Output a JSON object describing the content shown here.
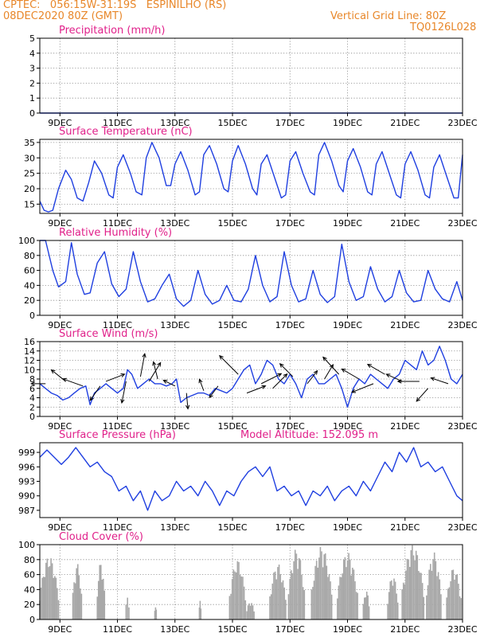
{
  "header": {
    "line1": "CPTEC:   056:15W-31:19S   ESPINILHO (RS)",
    "line2": "08DEC2020 80Z (GMT)",
    "grid_info": "Vertical Grid Line: 80Z",
    "code": "TQ0126L028"
  },
  "model_altitude": "Model Altitude: 152.095 m",
  "colors": {
    "header": "#e8872a",
    "title": "#e0208a",
    "line": "#1f3fe0",
    "bar": "#a8a8a8",
    "arrow": "#000000"
  },
  "x_axis": {
    "ticks": [
      "9DEC",
      "11DEC",
      "13DEC",
      "15DEC",
      "17DEC",
      "19DEC",
      "21DEC",
      "23DEC"
    ],
    "tick_days": [
      1,
      3,
      5,
      7,
      9,
      11,
      13,
      15
    ],
    "range_days": [
      0.3,
      15
    ]
  },
  "chart_data": [
    {
      "type": "line",
      "title": "Precipitation (mm/h)",
      "ylim": [
        0,
        5
      ],
      "yticks": [
        "0",
        "1",
        "2",
        "3",
        "4",
        "5"
      ],
      "grid": true,
      "series": [
        {
          "x": [
            0.3,
            15
          ],
          "y": [
            0,
            0
          ]
        }
      ]
    },
    {
      "type": "line",
      "title": "Surface Temperature (nC)",
      "ylim": [
        12,
        36
      ],
      "yticks": [
        "15",
        "20",
        "25",
        "30",
        "35"
      ],
      "grid": true,
      "series": [
        {
          "x": [
            0.3,
            0.45,
            0.6,
            0.75,
            0.95,
            1.2,
            1.4,
            1.6,
            1.8,
            2.0,
            2.2,
            2.45,
            2.7,
            2.85,
            3.0,
            3.2,
            3.45,
            3.65,
            3.85,
            4.0,
            4.2,
            4.45,
            4.7,
            4.85,
            5.0,
            5.2,
            5.45,
            5.7,
            5.85,
            6.0,
            6.2,
            6.45,
            6.7,
            6.85,
            7.0,
            7.2,
            7.45,
            7.7,
            7.85,
            8.0,
            8.2,
            8.45,
            8.7,
            8.85,
            9.0,
            9.2,
            9.45,
            9.7,
            9.85,
            10.0,
            10.2,
            10.45,
            10.7,
            10.85,
            11.0,
            11.2,
            11.45,
            11.7,
            11.85,
            12.0,
            12.2,
            12.45,
            12.7,
            12.85,
            13.0,
            13.2,
            13.45,
            13.7,
            13.85,
            14.0,
            14.2,
            14.45,
            14.7,
            14.85,
            15.0
          ],
          "y": [
            16,
            13,
            12.5,
            13,
            20,
            26,
            23,
            17,
            16,
            22,
            29,
            25,
            18,
            17,
            27,
            31,
            25,
            19,
            18,
            30,
            35,
            30,
            21,
            21,
            28,
            32,
            26,
            18,
            19,
            31,
            34,
            28,
            20,
            19,
            29,
            34,
            28,
            20,
            18,
            28,
            31,
            24,
            17,
            18,
            29,
            32,
            25,
            19,
            18,
            31,
            35,
            29,
            21,
            19,
            29,
            33,
            27,
            19,
            18,
            28,
            32,
            25,
            18,
            17,
            28,
            32,
            26,
            18,
            17,
            27,
            31,
            24,
            17,
            17,
            31
          ]
        }
      ]
    },
    {
      "type": "line",
      "title": "Relative Humidity (%)",
      "ylim": [
        0,
        100
      ],
      "yticks": [
        "0",
        "20",
        "40",
        "60",
        "80",
        "100"
      ],
      "grid": true,
      "series": [
        {
          "x": [
            0.3,
            0.5,
            0.75,
            0.95,
            1.2,
            1.4,
            1.6,
            1.85,
            2.05,
            2.3,
            2.55,
            2.8,
            3.05,
            3.3,
            3.55,
            3.8,
            4.05,
            4.3,
            4.55,
            4.8,
            5.05,
            5.3,
            5.55,
            5.8,
            6.05,
            6.3,
            6.55,
            6.8,
            7.05,
            7.3,
            7.55,
            7.8,
            8.05,
            8.3,
            8.55,
            8.8,
            9.05,
            9.3,
            9.55,
            9.8,
            10.05,
            10.3,
            10.55,
            10.8,
            11.05,
            11.3,
            11.55,
            11.8,
            12.05,
            12.3,
            12.55,
            12.8,
            13.05,
            13.3,
            13.55,
            13.8,
            14.05,
            14.3,
            14.55,
            14.8,
            15.0
          ],
          "y": [
            100,
            100,
            60,
            38,
            45,
            97,
            55,
            28,
            30,
            70,
            85,
            42,
            25,
            35,
            85,
            45,
            18,
            22,
            40,
            55,
            22,
            12,
            20,
            60,
            28,
            15,
            20,
            40,
            20,
            18,
            35,
            80,
            40,
            18,
            25,
            85,
            40,
            18,
            22,
            60,
            28,
            17,
            25,
            95,
            45,
            20,
            25,
            65,
            35,
            18,
            25,
            60,
            30,
            18,
            20,
            60,
            35,
            22,
            18,
            45,
            20
          ]
        }
      ]
    },
    {
      "type": "line",
      "title": "Surface Wind (m/s)",
      "ylim": [
        0,
        16
      ],
      "yticks": [
        "0",
        "2",
        "4",
        "6",
        "8",
        "10",
        "12",
        "14",
        "16"
      ],
      "grid": true,
      "series": [
        {
          "x": [
            0.3,
            0.5,
            0.7,
            0.9,
            1.1,
            1.3,
            1.5,
            1.7,
            1.9,
            2.05,
            2.2,
            2.4,
            2.6,
            2.8,
            3.0,
            3.2,
            3.35,
            3.5,
            3.7,
            3.9,
            4.1,
            4.3,
            4.5,
            4.7,
            4.9,
            5.05,
            5.2,
            5.4,
            5.6,
            5.8,
            6.0,
            6.2,
            6.4,
            6.6,
            6.8,
            7.0,
            7.2,
            7.4,
            7.6,
            7.8,
            8.0,
            8.2,
            8.4,
            8.6,
            8.8,
            9.0,
            9.2,
            9.4,
            9.6,
            9.8,
            10.0,
            10.2,
            10.4,
            10.6,
            10.8,
            11.0,
            11.2,
            11.4,
            11.6,
            11.8,
            12.0,
            12.2,
            12.4,
            12.6,
            12.8,
            13.0,
            13.2,
            13.4,
            13.6,
            13.8,
            14.0,
            14.2,
            14.4,
            14.6,
            14.8,
            15.0
          ],
          "y": [
            7,
            6,
            5,
            4.5,
            3.5,
            4,
            5,
            6,
            6.5,
            2.5,
            5,
            6,
            7,
            6,
            5,
            6,
            10,
            9,
            6,
            7,
            8,
            7,
            7,
            6.5,
            7,
            8,
            3,
            4,
            4.5,
            5,
            5,
            4.5,
            6,
            5.5,
            5,
            6,
            8,
            10,
            11,
            7,
            9,
            12,
            11,
            8,
            7,
            9,
            7,
            4,
            8,
            9,
            7,
            7,
            8,
            9,
            6,
            2,
            6,
            8,
            7,
            9,
            8,
            7,
            6,
            8,
            9,
            12,
            11,
            10,
            14,
            11,
            12,
            15,
            12,
            8,
            7,
            9
          ]
        }
      ],
      "arrows": [
        {
          "x": 0.5,
          "y": 7,
          "u": -1,
          "v": 0
        },
        {
          "x": 1.2,
          "y": 7.5,
          "u": -1,
          "v": 0.8
        },
        {
          "x": 1.8,
          "y": 6.5,
          "u": -1.4,
          "v": 0.5
        },
        {
          "x": 2.4,
          "y": 6.5,
          "u": -0.7,
          "v": -1
        },
        {
          "x": 2.6,
          "y": 7.5,
          "u": 1.3,
          "v": 0.5
        },
        {
          "x": 3.3,
          "y": 7.5,
          "u": -0.3,
          "v": -1.5
        },
        {
          "x": 3.8,
          "y": 8.5,
          "u": 0.3,
          "v": 1.6
        },
        {
          "x": 4.1,
          "y": 7.5,
          "u": 0.8,
          "v": 1.3
        },
        {
          "x": 4.4,
          "y": 8,
          "u": -0.3,
          "v": 1.2
        },
        {
          "x": 5.0,
          "y": 6.5,
          "u": -0.8,
          "v": 0.4
        },
        {
          "x": 5.4,
          "y": 5,
          "u": 0.1,
          "v": -1.1
        },
        {
          "x": 6.0,
          "y": 5.5,
          "u": -0.3,
          "v": 0.8
        },
        {
          "x": 6.5,
          "y": 6.5,
          "u": -0.6,
          "v": -0.8
        },
        {
          "x": 7.2,
          "y": 9,
          "u": -1.3,
          "v": 1.3
        },
        {
          "x": 7.5,
          "y": 5,
          "u": 1.3,
          "v": 0.5
        },
        {
          "x": 8.0,
          "y": 7,
          "u": 1.4,
          "v": 0.7
        },
        {
          "x": 8.4,
          "y": 6,
          "u": 1.0,
          "v": 1.0
        },
        {
          "x": 9.1,
          "y": 8.5,
          "u": -0.9,
          "v": 0.9
        },
        {
          "x": 9.6,
          "y": 7,
          "u": 0.7,
          "v": 0.9
        },
        {
          "x": 10.2,
          "y": 8,
          "u": 0.6,
          "v": 1.0
        },
        {
          "x": 10.7,
          "y": 9,
          "u": -1.1,
          "v": 1.2
        },
        {
          "x": 11.4,
          "y": 8,
          "u": -1.2,
          "v": 0.7
        },
        {
          "x": 11.9,
          "y": 7,
          "u": -1.5,
          "v": -0.6
        },
        {
          "x": 12.3,
          "y": 9,
          "u": -1.2,
          "v": 0.7
        },
        {
          "x": 12.9,
          "y": 7.5,
          "u": -1.1,
          "v": 0.5
        },
        {
          "x": 13.5,
          "y": 7.5,
          "u": -1.5,
          "v": 0
        },
        {
          "x": 13.8,
          "y": 6,
          "u": -0.8,
          "v": -0.9
        },
        {
          "x": 14.5,
          "y": 7,
          "u": -1.2,
          "v": 0.4
        }
      ]
    },
    {
      "type": "line",
      "title": "Surface Pressure (hPa)",
      "ylim": [
        985.5,
        1001
      ],
      "yticks": [
        "987",
        "990",
        "993",
        "996",
        "999"
      ],
      "grid": false,
      "series": [
        {
          "x": [
            0.3,
            0.55,
            0.8,
            1.05,
            1.3,
            1.55,
            1.8,
            2.05,
            2.3,
            2.55,
            2.8,
            3.05,
            3.3,
            3.55,
            3.8,
            4.05,
            4.3,
            4.55,
            4.8,
            5.05,
            5.3,
            5.55,
            5.8,
            6.05,
            6.3,
            6.55,
            6.8,
            7.05,
            7.3,
            7.55,
            7.8,
            8.05,
            8.3,
            8.55,
            8.8,
            9.05,
            9.3,
            9.55,
            9.8,
            10.05,
            10.3,
            10.55,
            10.8,
            11.05,
            11.3,
            11.55,
            11.8,
            12.05,
            12.3,
            12.55,
            12.8,
            13.05,
            13.3,
            13.55,
            13.8,
            14.05,
            14.3,
            14.55,
            14.8,
            15.0
          ],
          "y": [
            998,
            999.5,
            998,
            996.5,
            998,
            1000,
            998,
            996,
            997,
            995,
            994,
            991,
            992,
            989,
            991,
            987,
            991,
            989,
            990,
            993,
            991,
            992,
            990,
            993,
            991,
            988,
            991,
            990,
            993,
            995,
            996,
            994,
            996,
            991,
            992,
            990,
            991,
            988,
            991,
            990,
            992,
            989,
            991,
            992,
            990,
            993,
            991,
            994,
            997,
            995,
            999,
            997,
            1000,
            996,
            997,
            995,
            996,
            993,
            990,
            989
          ]
        }
      ]
    },
    {
      "type": "bar",
      "title": "Cloud Cover (%)",
      "ylim": [
        0,
        100
      ],
      "yticks": [
        "0",
        "20",
        "40",
        "60",
        "80",
        "100"
      ],
      "grid": true,
      "segments": [
        {
          "x0": 0.3,
          "x1": 0.95,
          "peak": 85
        },
        {
          "x0": 1.45,
          "x1": 1.75,
          "peak": 75
        },
        {
          "x0": 2.3,
          "x1": 2.55,
          "peak": 78
        },
        {
          "x0": 3.3,
          "x1": 3.4,
          "peak": 30
        },
        {
          "x0": 4.3,
          "x1": 4.35,
          "peak": 20
        },
        {
          "x0": 5.85,
          "x1": 5.9,
          "peak": 25
        },
        {
          "x0": 6.9,
          "x1": 7.45,
          "peak": 80
        },
        {
          "x0": 7.5,
          "x1": 7.75,
          "peak": 25
        },
        {
          "x0": 8.3,
          "x1": 8.85,
          "peak": 75
        },
        {
          "x0": 8.95,
          "x1": 9.5,
          "peak": 95
        },
        {
          "x0": 9.75,
          "x1": 10.45,
          "peak": 98
        },
        {
          "x0": 10.65,
          "x1": 11.35,
          "peak": 90
        },
        {
          "x0": 11.55,
          "x1": 11.75,
          "peak": 40
        },
        {
          "x0": 12.4,
          "x1": 12.75,
          "peak": 60
        },
        {
          "x0": 12.9,
          "x1": 13.65,
          "peak": 100
        },
        {
          "x0": 13.75,
          "x1": 14.25,
          "peak": 90
        },
        {
          "x0": 14.45,
          "x1": 14.95,
          "peak": 70
        }
      ]
    }
  ]
}
